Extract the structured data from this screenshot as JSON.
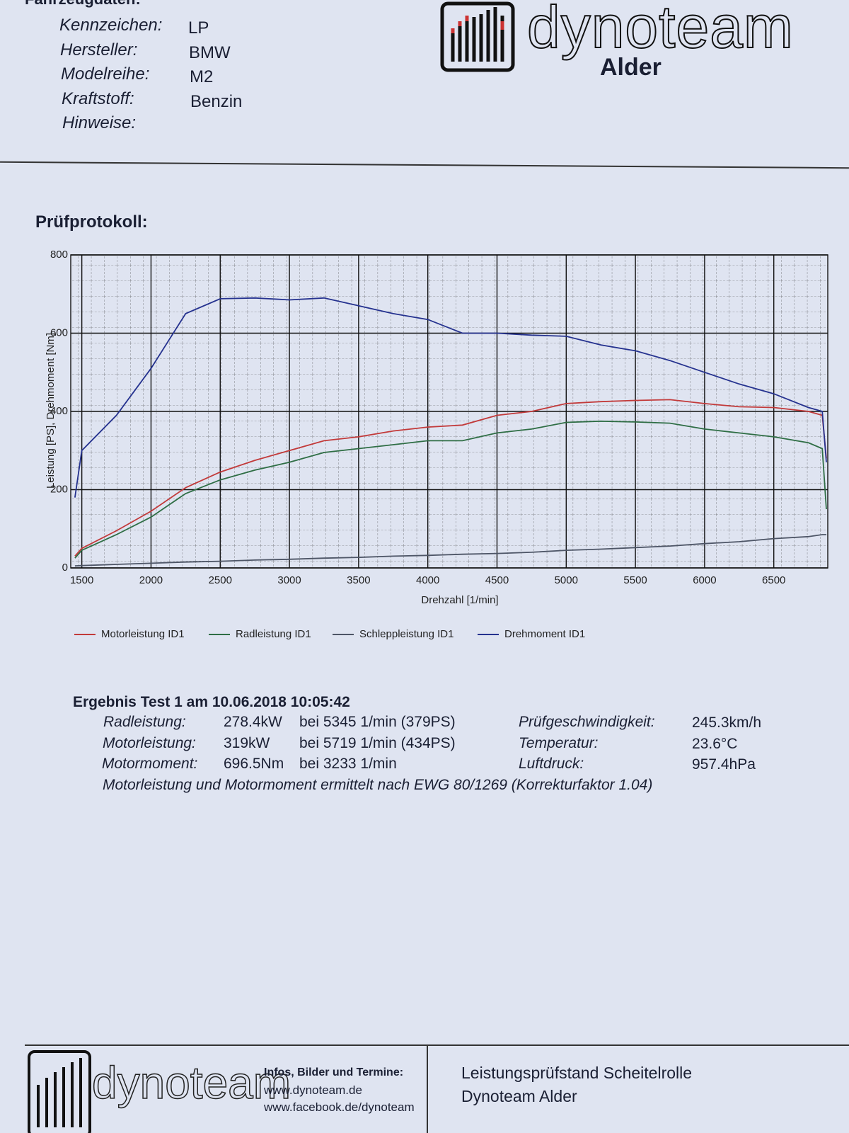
{
  "header": {
    "section_title": "Fahrzeugdaten:",
    "fields": [
      {
        "label": "Kennzeichen:",
        "value": "LP"
      },
      {
        "label": "Hersteller:",
        "value": "BMW"
      },
      {
        "label": "Modelreihe:",
        "value": "M2"
      },
      {
        "label": "Kraftstoff:",
        "value": "Benzin"
      },
      {
        "label": "Hinweise:"
      }
    ],
    "logo": {
      "name": "dynoteam",
      "location": "Alder"
    }
  },
  "section_title": "Prüfprotokoll:",
  "chart_data": {
    "type": "line",
    "x_label": "Drehzahl [1/min]",
    "y_label": "Leistung [PS], Drehmoment [Nm]",
    "x": [
      1450,
      1500,
      1750,
      2000,
      2250,
      2500,
      2750,
      3000,
      3250,
      3500,
      3750,
      4000,
      4250,
      4500,
      4750,
      5000,
      5250,
      5500,
      5750,
      6000,
      6250,
      6500,
      6750,
      6850,
      6880
    ],
    "series": [
      {
        "name": "Motorleistung ID1",
        "color": "#c23a3a",
        "values": [
          30,
          50,
          95,
          145,
          205,
          245,
          275,
          300,
          325,
          335,
          350,
          360,
          365,
          390,
          400,
          420,
          425,
          428,
          430,
          420,
          412,
          410,
          400,
          390,
          280
        ]
      },
      {
        "name": "Radleistung ID1",
        "color": "#2f6e45",
        "values": [
          25,
          45,
          85,
          130,
          190,
          225,
          250,
          270,
          295,
          305,
          315,
          325,
          325,
          345,
          355,
          372,
          375,
          373,
          370,
          355,
          345,
          335,
          320,
          305,
          150
        ]
      },
      {
        "name": "Schleppleistung ID1",
        "color": "#4d5566",
        "values": [
          5,
          6,
          9,
          12,
          15,
          17,
          20,
          22,
          25,
          27,
          30,
          32,
          35,
          37,
          40,
          45,
          48,
          52,
          56,
          62,
          67,
          75,
          80,
          85,
          85
        ]
      },
      {
        "name": "Drehmoment ID1",
        "color": "#25328f",
        "values": [
          180,
          300,
          390,
          510,
          650,
          688,
          690,
          685,
          690,
          670,
          650,
          635,
          600,
          600,
          595,
          592,
          570,
          555,
          530,
          500,
          470,
          445,
          410,
          400,
          270
        ]
      }
    ],
    "xlim": [
      1420,
      6890
    ],
    "xticks": [
      1500,
      2000,
      2500,
      3000,
      3500,
      4000,
      4500,
      5000,
      5500,
      6000,
      6500
    ],
    "ylim": [
      0,
      800
    ],
    "yticks": [
      0,
      200,
      400,
      600,
      800
    ],
    "grid": true
  },
  "results": {
    "title": "Ergebnis Test 1 am 10.06.2018 10:05:42",
    "rows": [
      {
        "label": "Radleistung:",
        "value": "278.4kW",
        "at": "bei 5345 1/min (379PS)",
        "label2": "Prüfgeschwindigkeit:",
        "value2": "245.3km/h"
      },
      {
        "label": "Motorleistung:",
        "value": "319kW",
        "at": "bei 5719 1/min (434PS)",
        "label2": "Temperatur:",
        "value2": "23.6°C"
      },
      {
        "label": "Motormoment:",
        "value": "696.5Nm",
        "at": "bei 3233 1/min",
        "label2": "Luftdruck:",
        "value2": "957.4hPa"
      }
    ],
    "note": "Motorleistung und Motormoment ermittelt nach EWG 80/1269 (Korrekturfaktor 1.04)"
  },
  "footer": {
    "logo": "dynoteam",
    "info_title": "Infos, Bilder und Termine:",
    "links": [
      "www.dynoteam.de",
      "www.facebook.de/dynoteam"
    ],
    "lines": [
      "Leistungsprüfstand Scheitelrolle",
      "Dynoteam Alder"
    ]
  }
}
